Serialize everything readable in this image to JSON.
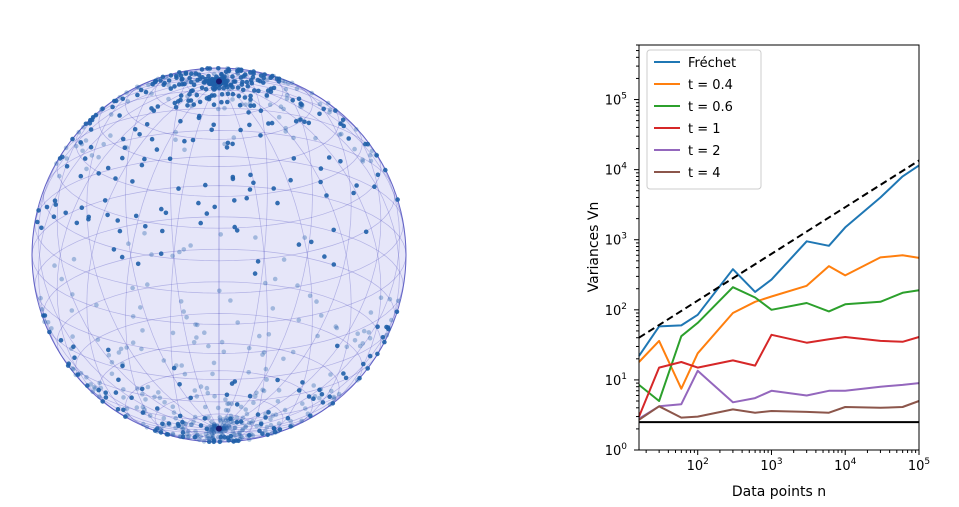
{
  "sphere_panel": {
    "type": "3d-scatter-sphere",
    "point_color": "#1f5fa8",
    "mesh_color": "#5050c0",
    "sphere_fill": "#d8d8f4"
  },
  "chart_data": {
    "type": "line",
    "xlabel": "Data points n",
    "ylabel": "Variances Vn",
    "xscale": "log",
    "yscale": "log",
    "xlim": [
      16,
      100000
    ],
    "ylim": [
      1,
      600000
    ],
    "x_ticks": [
      {
        "value": 100,
        "base": "10",
        "exp": "2"
      },
      {
        "value": 1000,
        "base": "10",
        "exp": "3"
      },
      {
        "value": 10000,
        "base": "10",
        "exp": "4"
      },
      {
        "value": 100000,
        "base": "10",
        "exp": "5"
      }
    ],
    "y_ticks": [
      {
        "value": 1,
        "base": "10",
        "exp": "0"
      },
      {
        "value": 10,
        "base": "10",
        "exp": "1"
      },
      {
        "value": 100,
        "base": "10",
        "exp": "2"
      },
      {
        "value": 1000,
        "base": "10",
        "exp": "3"
      },
      {
        "value": 10000,
        "base": "10",
        "exp": "4"
      },
      {
        "value": 100000,
        "base": "10",
        "exp": "5"
      }
    ],
    "legend_position": "top-left",
    "x": [
      16,
      30,
      60,
      100,
      300,
      600,
      1000,
      3000,
      6000,
      10000,
      30000,
      60000,
      100000
    ],
    "series": [
      {
        "name": "Fréchet",
        "color": "#1f77b4",
        "values": [
          22,
          58,
          60,
          85,
          380,
          180,
          270,
          950,
          820,
          1500,
          4000,
          8000,
          11500
        ]
      },
      {
        "name": "t = 0.4",
        "color": "#ff7f0e",
        "values": [
          18,
          36,
          7.5,
          24,
          90,
          130,
          155,
          220,
          420,
          310,
          560,
          600,
          550
        ]
      },
      {
        "name": "t = 0.6",
        "color": "#2ca02c",
        "values": [
          8.5,
          5,
          42,
          65,
          210,
          150,
          100,
          125,
          95,
          120,
          130,
          175,
          190
        ]
      },
      {
        "name": "t = 1",
        "color": "#d62728",
        "values": [
          3,
          15,
          18,
          15,
          19,
          16,
          44,
          34,
          38,
          41,
          36,
          35,
          41
        ]
      },
      {
        "name": "t = 2",
        "color": "#9467bd",
        "values": [
          2.8,
          4.2,
          4.5,
          13.5,
          4.8,
          5.5,
          7,
          6,
          7,
          7,
          8,
          8.5,
          9
        ]
      },
      {
        "name": "t = 4",
        "color": "#8c564b",
        "values": [
          2.7,
          4.2,
          2.9,
          3.0,
          3.8,
          3.4,
          3.6,
          3.5,
          3.4,
          4.1,
          4.0,
          4.1,
          5.0
        ]
      }
    ],
    "reference_lines": [
      {
        "style": "dashed",
        "color": "#000000",
        "x": [
          16,
          100000
        ],
        "y": [
          40,
          13500
        ]
      },
      {
        "style": "solid",
        "color": "#000000",
        "x": [
          16,
          100000
        ],
        "y": [
          2.5,
          2.5
        ]
      }
    ]
  }
}
